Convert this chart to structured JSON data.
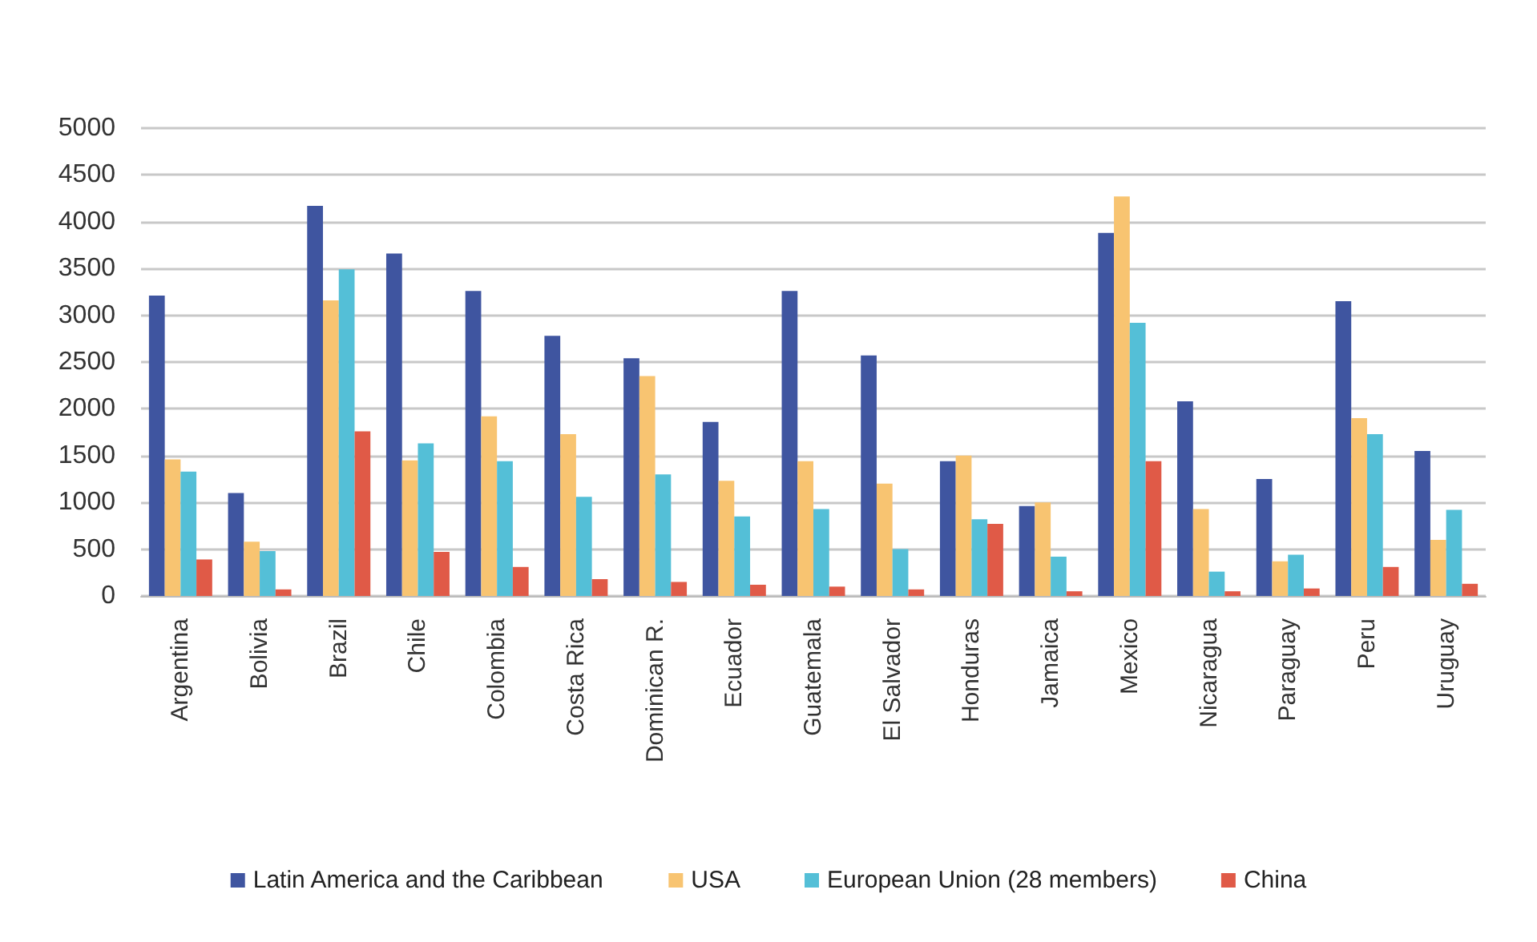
{
  "chart_data": {
    "type": "bar",
    "categories": [
      "Argentina",
      "Bolivia",
      "Brazil",
      "Chile",
      "Colombia",
      "Costa Rica",
      "Dominican R.",
      "Ecuador",
      "Guatemala",
      "El Salvador",
      "Honduras",
      "Jamaica",
      "Mexico",
      "Nicaragua",
      "Paraguay",
      "Peru",
      "Uruguay"
    ],
    "series": [
      {
        "name": "Latin America and the Caribbean",
        "color": "#3f55a0",
        "values": [
          3210,
          1100,
          4170,
          3660,
          3260,
          2780,
          2540,
          1860,
          3260,
          2570,
          1440,
          960,
          3880,
          2080,
          1250,
          3150,
          1550
        ]
      },
      {
        "name": "USA",
        "color": "#f8c471",
        "values": [
          1460,
          580,
          3160,
          1450,
          1920,
          1730,
          2350,
          1230,
          1440,
          1200,
          1500,
          1000,
          4270,
          930,
          370,
          1900,
          600
        ]
      },
      {
        "name": "European Union (28 members)",
        "color": "#54bfd7",
        "values": [
          1330,
          480,
          3490,
          1630,
          1440,
          1060,
          1300,
          850,
          930,
          500,
          820,
          420,
          2920,
          260,
          440,
          1730,
          920
        ]
      },
      {
        "name": "China",
        "color": "#e05a47",
        "values": [
          390,
          70,
          1760,
          470,
          310,
          180,
          150,
          120,
          100,
          70,
          770,
          50,
          1440,
          50,
          80,
          310,
          130
        ]
      }
    ],
    "ylim": [
      0,
      5000
    ],
    "yticks": [
      0,
      500,
      1000,
      1500,
      2000,
      2500,
      3000,
      3500,
      4000,
      4500,
      5000
    ],
    "grid": "y",
    "legend": "bottom"
  }
}
